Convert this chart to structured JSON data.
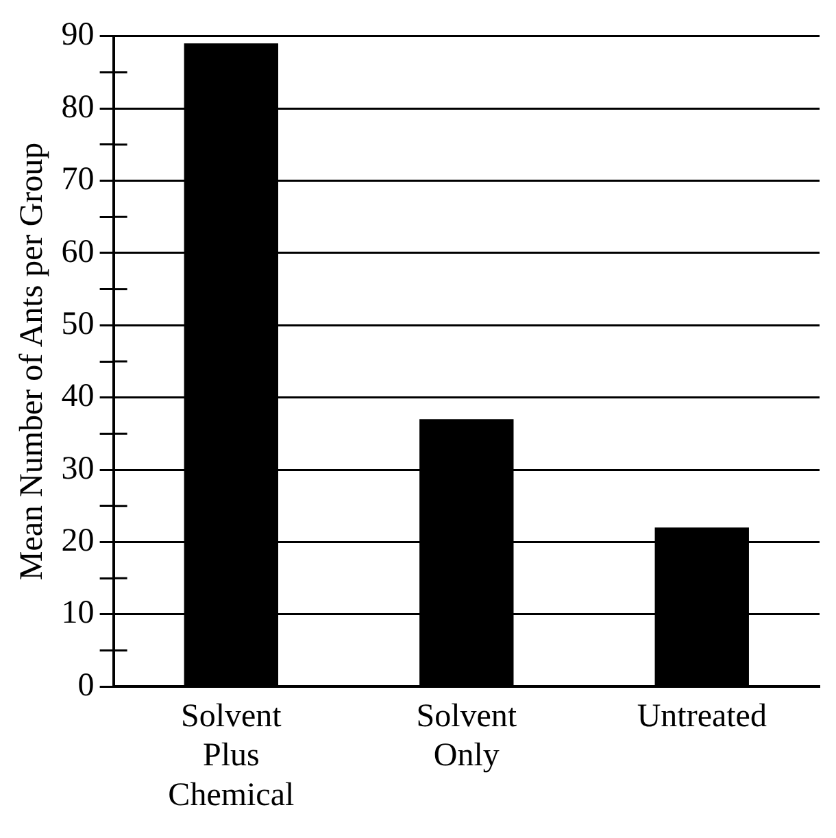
{
  "chart_data": {
    "type": "bar",
    "ylabel": "Mean Number of Ants per Group",
    "categories": [
      "Solvent Plus Chemical",
      "Solvent Only",
      "Untreated"
    ],
    "values": [
      89,
      37,
      22
    ],
    "color": "#000000",
    "ylim": [
      0,
      90
    ],
    "yticks": [
      0,
      {
        "value": 5,
        "label": null
      },
      10,
      {
        "value": 15,
        "label": null
      },
      20,
      {
        "value": 25,
        "label": null
      },
      30,
      {
        "value": 35,
        "label": null
      },
      40,
      {
        "value": 45,
        "label": null
      },
      50,
      {
        "value": 55,
        "label": null
      },
      60,
      {
        "value": 65,
        "label": null
      },
      70,
      {
        "value": 75,
        "label": null
      },
      80,
      {
        "value": 85,
        "label": null
      },
      90
    ],
    "grid": "y",
    "legend": false
  }
}
